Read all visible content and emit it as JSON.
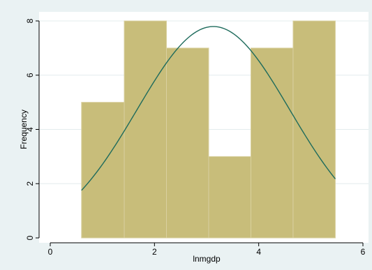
{
  "chart_data": {
    "type": "bar",
    "subtype": "histogram",
    "xlabel": "lnmgdp",
    "ylabel": "Frequency",
    "xlim": [
      0,
      6
    ],
    "ylim": [
      0,
      8
    ],
    "x_ticks": [
      0,
      2,
      4,
      6
    ],
    "y_ticks": [
      0,
      2,
      4,
      6,
      8
    ],
    "bins": [
      {
        "start": 0.6,
        "end": 1.42,
        "value": 5
      },
      {
        "start": 1.42,
        "end": 2.23,
        "value": 8
      },
      {
        "start": 2.23,
        "end": 3.04,
        "value": 7
      },
      {
        "start": 3.04,
        "end": 3.85,
        "value": 3
      },
      {
        "start": 3.85,
        "end": 4.66,
        "value": 7
      },
      {
        "start": 4.66,
        "end": 5.47,
        "value": 8
      }
    ],
    "normal_curve": {
      "mean": 3.13,
      "sd": 1.465,
      "x_range": [
        0.6,
        5.47
      ],
      "scale": 28.62
    },
    "grid": "horizontal",
    "legend": "none",
    "colors": {
      "bar_fill": "#c8bd7a",
      "bar_edge": "#d9d0a0",
      "curve": "#1e6b5c",
      "plot_background": "#ffffff",
      "outer_background": "#eaf2f3",
      "gridline": "#e3ecee"
    }
  }
}
